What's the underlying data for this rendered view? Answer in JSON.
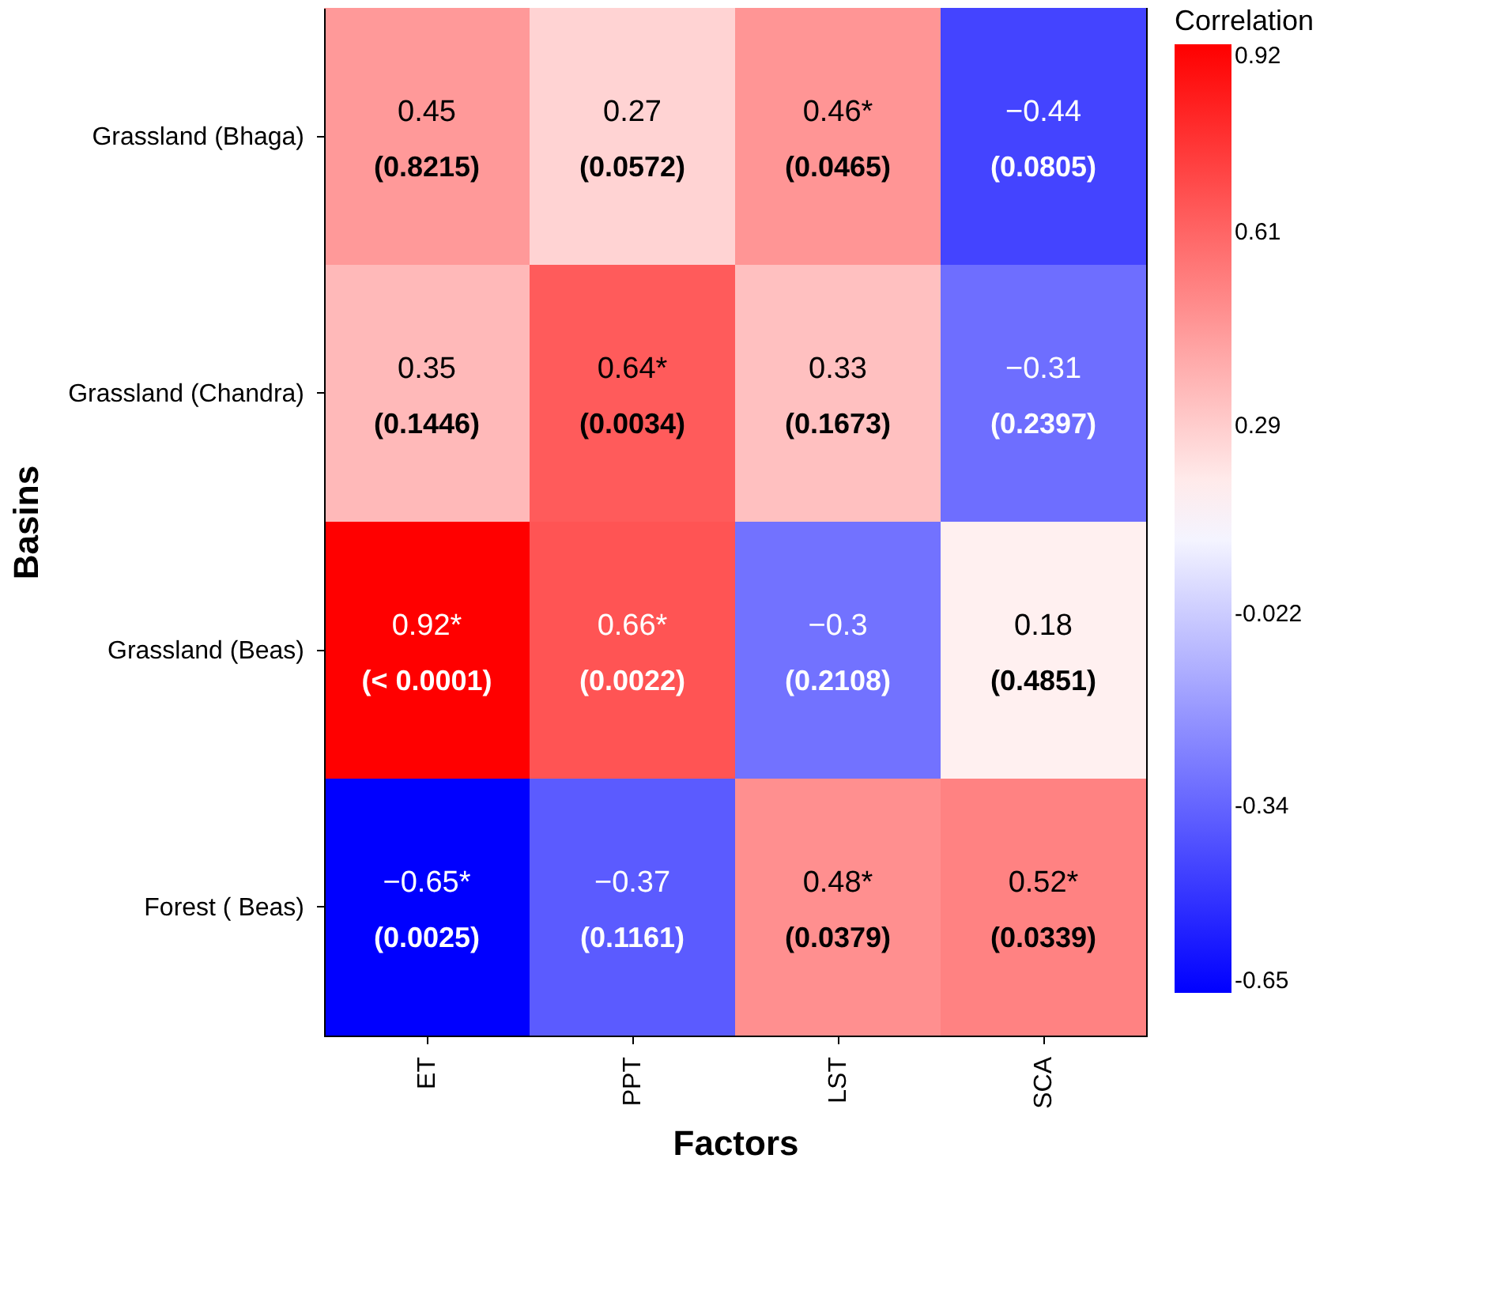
{
  "chart_data": {
    "type": "heatmap",
    "xlabel": "Factors",
    "ylabel": "Basins",
    "legend_title": "Correlation",
    "categories": [
      "ET",
      "PPT",
      "LST",
      "SCA"
    ],
    "y_categories": [
      "Grassland (Bhaga)",
      "Grassland (Chandra)",
      "Grassland (Beas)",
      "Forest ( Beas)"
    ],
    "cells": [
      [
        0.45,
        0.27,
        0.46,
        -0.44
      ],
      [
        0.35,
        0.64,
        0.33,
        -0.31
      ],
      [
        0.92,
        0.66,
        -0.3,
        0.18
      ],
      [
        -0.65,
        -0.37,
        0.48,
        0.52
      ]
    ],
    "cell_labels": [
      [
        "0.45\n(0.8215)",
        "0.27\n(0.0572)",
        "0.46*\n(0.0465)",
        "−0.44\n(0.0805)"
      ],
      [
        "0.35\n(0.1446)",
        "0.64*\n(0.0034)",
        "0.33\n(0.1673)",
        "−0.31\n(0.2397)"
      ],
      [
        "0.92*\n(< 0.0001)",
        "0.66*\n(0.0022)",
        "−0.3\n(0.2108)",
        "0.18\n(0.4851)"
      ],
      [
        "−0.65*\n(0.0025)",
        "−0.37\n(0.1161)",
        "0.48*\n(0.0379)",
        "0.52*\n(0.0339)"
      ]
    ],
    "clim": [
      -0.65,
      0.92
    ],
    "cticks": [
      0.92,
      0.61,
      0.29,
      -0.022,
      -0.34,
      -0.65
    ]
  }
}
